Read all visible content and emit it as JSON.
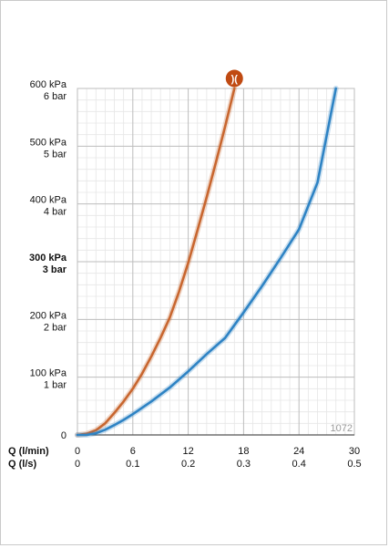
{
  "chart_data": {
    "type": "line",
    "x_axes": [
      {
        "label": "Q (l/min)",
        "ticks": [
          "0",
          "6",
          "12",
          "18",
          "24",
          "30"
        ],
        "range": [
          0,
          30
        ]
      },
      {
        "label": "Q (l/s)",
        "ticks": [
          "0",
          "0.1",
          "0.2",
          "0.3",
          "0.4",
          "0.5"
        ],
        "range": [
          0,
          0.5
        ]
      }
    ],
    "y_axis": {
      "range": [
        0,
        600
      ],
      "ticks": [
        {
          "value": 0,
          "kpa": "0",
          "bar": ""
        },
        {
          "value": 100,
          "kpa": "100 kPa",
          "bar": "1 bar"
        },
        {
          "value": 200,
          "kpa": "200 kPa",
          "bar": "2 bar"
        },
        {
          "value": 300,
          "kpa": "300 kPa",
          "bar": "3 bar",
          "bold": true
        },
        {
          "value": 400,
          "kpa": "400 kPa",
          "bar": "4 bar"
        },
        {
          "value": 500,
          "kpa": "500 kPa",
          "bar": "5 bar"
        },
        {
          "value": 600,
          "kpa": "600 kPa",
          "bar": "6 bar"
        }
      ]
    },
    "grid": true,
    "series": [
      {
        "color": "#c8662f",
        "points": [
          [
            0,
            0
          ],
          [
            1,
            2
          ],
          [
            2,
            8
          ],
          [
            3,
            20
          ],
          [
            4,
            38
          ],
          [
            5,
            58
          ],
          [
            6,
            80
          ],
          [
            7,
            106
          ],
          [
            8,
            136
          ],
          [
            9,
            168
          ],
          [
            10,
            203
          ],
          [
            11,
            248
          ],
          [
            12,
            298
          ],
          [
            13,
            354
          ],
          [
            14,
            412
          ],
          [
            15,
            472
          ],
          [
            16,
            534
          ],
          [
            17,
            600
          ]
        ]
      },
      {
        "color": "#2e83c4",
        "points": [
          [
            0,
            0
          ],
          [
            1,
            0
          ],
          [
            2,
            3
          ],
          [
            3,
            9
          ],
          [
            4,
            17
          ],
          [
            5,
            26
          ],
          [
            6,
            36
          ],
          [
            8,
            58
          ],
          [
            10,
            82
          ],
          [
            12,
            110
          ],
          [
            14,
            140
          ],
          [
            16,
            168
          ],
          [
            18,
            212
          ],
          [
            20,
            258
          ],
          [
            22,
            306
          ],
          [
            24,
            356
          ],
          [
            26,
            437
          ],
          [
            28,
            600
          ]
        ]
      }
    ],
    "marker": {
      "icon": "mixer-valve-icon",
      "color": "#c04a12",
      "glyph": ")("
    },
    "watermark": "1072"
  }
}
